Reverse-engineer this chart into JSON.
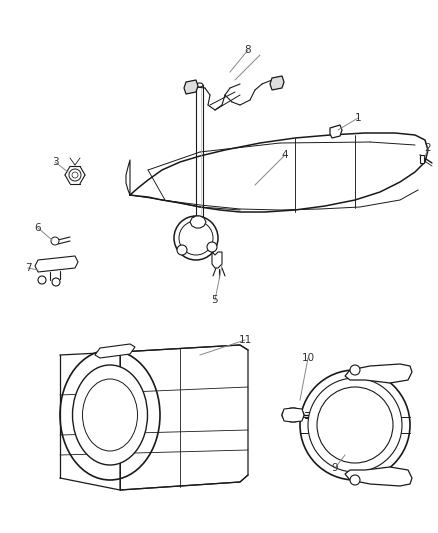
{
  "background_color": "#ffffff",
  "line_color": "#1a1a1a",
  "label_color": "#333333",
  "gray_color": "#888888",
  "fig_width": 4.38,
  "fig_height": 5.33,
  "dpi": 100
}
